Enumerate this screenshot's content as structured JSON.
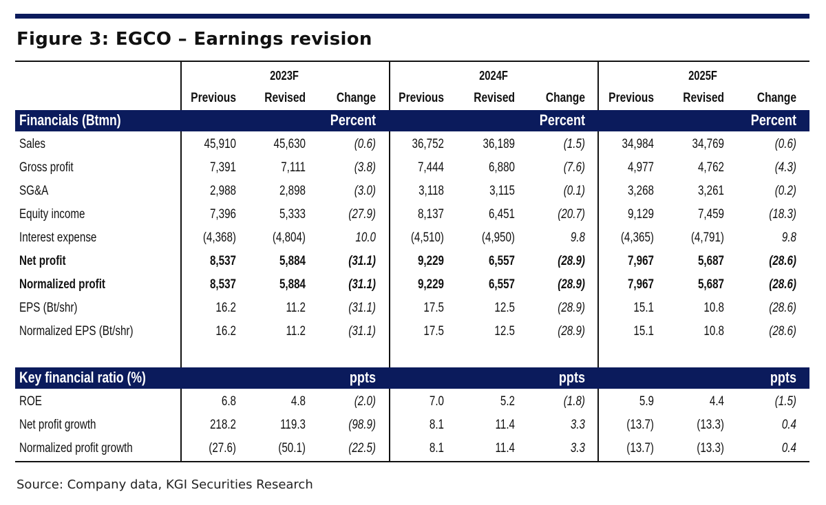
{
  "figure_title": "Figure 3: EGCO – Earnings revision",
  "years": [
    "2023F",
    "2024F",
    "2025F"
  ],
  "column_labels": [
    "Previous",
    "Revised",
    "Change"
  ],
  "sections": [
    {
      "title": "Financials (Btmn)",
      "unit": "Percent",
      "rows": [
        {
          "label": "Sales",
          "bold": false,
          "values": [
            "45,910",
            "45,630",
            "(0.6)",
            "36,752",
            "36,189",
            "(1.5)",
            "34,984",
            "34,769",
            "(0.6)"
          ]
        },
        {
          "label": "Gross profit",
          "bold": false,
          "values": [
            "7,391",
            "7,111",
            "(3.8)",
            "7,444",
            "6,880",
            "(7.6)",
            "4,977",
            "4,762",
            "(4.3)"
          ]
        },
        {
          "label": "SG&A",
          "bold": false,
          "values": [
            "2,988",
            "2,898",
            "(3.0)",
            "3,118",
            "3,115",
            "(0.1)",
            "3,268",
            "3,261",
            "(0.2)"
          ]
        },
        {
          "label": "Equity income",
          "bold": false,
          "values": [
            "7,396",
            "5,333",
            "(27.9)",
            "8,137",
            "6,451",
            "(20.7)",
            "9,129",
            "7,459",
            "(18.3)"
          ]
        },
        {
          "label": "Interest expense",
          "bold": false,
          "values": [
            "(4,368)",
            "(4,804)",
            "10.0",
            "(4,510)",
            "(4,950)",
            "9.8",
            "(4,365)",
            "(4,791)",
            "9.8"
          ]
        },
        {
          "label": "Net profit",
          "bold": true,
          "values": [
            "8,537",
            "5,884",
            "(31.1)",
            "9,229",
            "6,557",
            "(28.9)",
            "7,967",
            "5,687",
            "(28.6)"
          ]
        },
        {
          "label": "Normalized profit",
          "bold": true,
          "values": [
            "8,537",
            "5,884",
            "(31.1)",
            "9,229",
            "6,557",
            "(28.9)",
            "7,967",
            "5,687",
            "(28.6)"
          ]
        },
        {
          "label": "EPS (Bt/shr)",
          "bold": false,
          "values": [
            "16.2",
            "11.2",
            "(31.1)",
            "17.5",
            "12.5",
            "(28.9)",
            "15.1",
            "10.8",
            "(28.6)"
          ]
        },
        {
          "label": "Normalized EPS (Bt/shr)",
          "bold": false,
          "values": [
            "16.2",
            "11.2",
            "(31.1)",
            "17.5",
            "12.5",
            "(28.9)",
            "15.1",
            "10.8",
            "(28.6)"
          ]
        }
      ]
    },
    {
      "title": "Key financial ratio (%)",
      "unit": "ppts",
      "rows": [
        {
          "label": "ROE",
          "bold": false,
          "values": [
            "6.8",
            "4.8",
            "(2.0)",
            "7.0",
            "5.2",
            "(1.8)",
            "5.9",
            "4.4",
            "(1.5)"
          ]
        },
        {
          "label": "Net profit growth",
          "bold": false,
          "values": [
            "218.2",
            "119.3",
            "(98.9)",
            "8.1",
            "11.4",
            "3.3",
            "(13.7)",
            "(13.3)",
            "0.4"
          ]
        },
        {
          "label": "Normalized profit growth",
          "bold": false,
          "values": [
            "(27.6)",
            "(50.1)",
            "(22.5)",
            "8.1",
            "11.4",
            "3.3",
            "(13.7)",
            "(13.3)",
            "0.4"
          ]
        }
      ]
    }
  ],
  "source": "Source: Company data, KGI Securities Research"
}
